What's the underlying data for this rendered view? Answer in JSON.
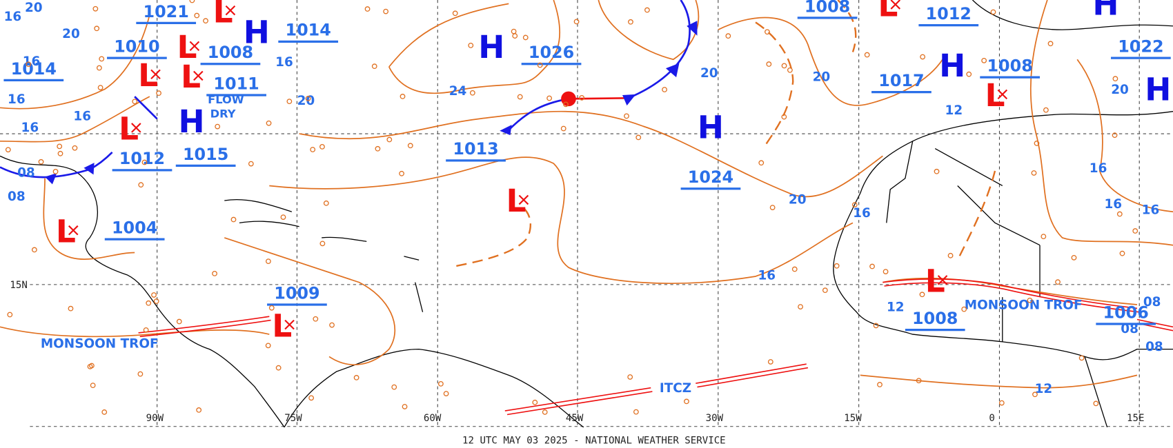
{
  "footer": "12 UTC MAY 03 2025 - NATIONAL WEATHER SERVICE",
  "longitude_labels": [
    "90W",
    "75W",
    "60W",
    "45W",
    "30W",
    "15W",
    "0",
    "15E"
  ],
  "latitude_labels": [
    "15N"
  ],
  "centers": [
    {
      "kind": "H",
      "pressure": 1026
    },
    {
      "kind": "H",
      "pressure": 1024
    },
    {
      "kind": "L"
    },
    {
      "kind": "H",
      "pressure": 1014
    },
    {
      "kind": "L",
      "pressure": 1008
    },
    {
      "kind": "L",
      "pressure": 1021
    },
    {
      "kind": "L",
      "pressure": 1010
    },
    {
      "kind": "L",
      "pressure": 1011
    },
    {
      "kind": "H",
      "pressure": 1015
    },
    {
      "kind": "L",
      "pressure": 1012
    },
    {
      "kind": "L",
      "pressure": 1004
    },
    {
      "kind": "L",
      "pressure": 1009
    },
    {
      "kind": "L",
      "pressure": 1008
    },
    {
      "kind": "H",
      "pressure": 1017
    },
    {
      "kind": "L",
      "pressure": 1008
    },
    {
      "kind": "L",
      "pressure": 1008
    },
    {
      "kind": "H",
      "pressure": 1022
    },
    {
      "kind": "H"
    }
  ],
  "unattached_pressures": [
    1013,
    1012,
    1006,
    1014
  ],
  "isobar_labels": [
    "20",
    "24",
    "20",
    "20",
    "20",
    "16",
    "16",
    "12",
    "12",
    "16",
    "16",
    "16",
    "20",
    "12",
    "08",
    "08",
    "16",
    "16",
    "16",
    "16",
    "20",
    "16",
    "08",
    "08",
    "08",
    "20",
    "16"
  ],
  "features": [
    "MONSOON TROF",
    "MONSOON TROF",
    "ITCZ",
    "FLOW",
    "DRY"
  ]
}
